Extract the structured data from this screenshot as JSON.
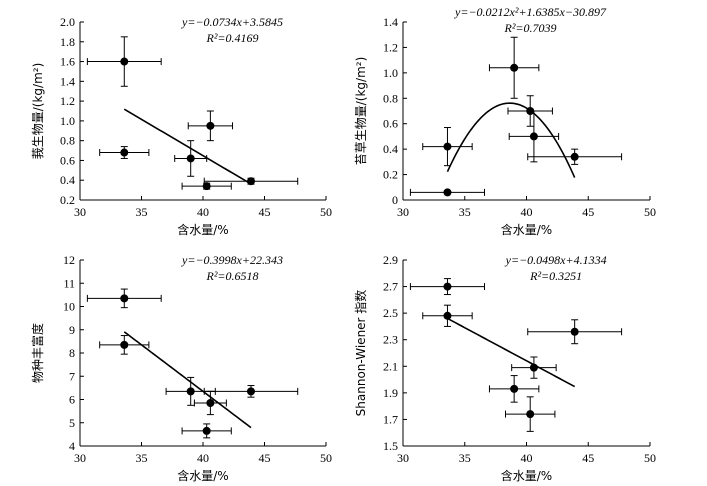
{
  "chart_data": [
    {
      "type": "scatter",
      "xlabel": "含水量/%",
      "ylabel": "莪生物量/(kg/m²)",
      "xlim": [
        30,
        50
      ],
      "ylim": [
        0.2,
        2.0
      ],
      "xticks": [
        "30",
        "35",
        "40",
        "45",
        "50"
      ],
      "yticks": [
        "0.2",
        "0.4",
        "0.6",
        "0.8",
        "1.0",
        "1.2",
        "1.4",
        "1.6",
        "1.8",
        "2.0"
      ],
      "equation": "y=−0.0734x+3.5845",
      "r2": "R²=0.4169",
      "equation_position": "top-right",
      "fit": {
        "kind": "linear",
        "slope": -0.0734,
        "intercept": 3.5845,
        "x_range": [
          33.6,
          43.9
        ]
      },
      "points": [
        {
          "x": 33.6,
          "y": 1.6,
          "xerr": 3.0,
          "yerr": 0.25
        },
        {
          "x": 33.6,
          "y": 0.68,
          "xerr": 2.0,
          "yerr": 0.06
        },
        {
          "x": 39.0,
          "y": 0.62,
          "xerr": 1.3,
          "yerr": 0.18
        },
        {
          "x": 40.6,
          "y": 0.95,
          "xerr": 1.8,
          "yerr": 0.15
        },
        {
          "x": 40.3,
          "y": 0.34,
          "xerr": 2.0,
          "yerr": 0.03
        },
        {
          "x": 43.9,
          "y": 0.39,
          "xerr": 3.8,
          "yerr": 0.03
        }
      ]
    },
    {
      "type": "scatter",
      "xlabel": "含水量/%",
      "ylabel": "苔草生物量/(kg/m²)",
      "xlim": [
        30,
        50
      ],
      "ylim": [
        0,
        1.4
      ],
      "xticks": [
        "30",
        "35",
        "40",
        "45",
        "50"
      ],
      "yticks": [
        "0",
        "0.2",
        "0.4",
        "0.6",
        "0.8",
        "1.0",
        "1.2",
        "1.4"
      ],
      "equation": "y=−0.0212x²+1.6385x−30.897",
      "r2": "R²=0.7039",
      "equation_position": "top",
      "fit": {
        "kind": "quadratic",
        "a": -0.0212,
        "b": 1.6385,
        "c": -30.897,
        "x_range": [
          33.6,
          43.9
        ]
      },
      "points": [
        {
          "x": 33.6,
          "y": 0.06,
          "xerr": 3.0,
          "yerr": 0.0
        },
        {
          "x": 33.6,
          "y": 0.42,
          "xerr": 2.0,
          "yerr": 0.15
        },
        {
          "x": 39.0,
          "y": 1.04,
          "xerr": 2.0,
          "yerr": 0.24
        },
        {
          "x": 40.3,
          "y": 0.7,
          "xerr": 1.8,
          "yerr": 0.12
        },
        {
          "x": 40.6,
          "y": 0.5,
          "xerr": 2.0,
          "yerr": 0.2
        },
        {
          "x": 43.9,
          "y": 0.34,
          "xerr": 3.8,
          "yerr": 0.06
        }
      ]
    },
    {
      "type": "scatter",
      "xlabel": "含水量/%",
      "ylabel": "物种丰富度",
      "xlim": [
        30,
        50
      ],
      "ylim": [
        4,
        12
      ],
      "xticks": [
        "30",
        "35",
        "40",
        "45",
        "50"
      ],
      "yticks": [
        "4",
        "5",
        "6",
        "7",
        "8",
        "9",
        "10",
        "11",
        "12"
      ],
      "equation": "y=−0.3998x+22.343",
      "r2": "R²=0.6518",
      "equation_position": "top-right",
      "fit": {
        "kind": "linear",
        "slope": -0.3998,
        "intercept": 22.343,
        "x_range": [
          33.6,
          43.9
        ]
      },
      "points": [
        {
          "x": 33.6,
          "y": 10.35,
          "xerr": 3.0,
          "yerr": 0.4
        },
        {
          "x": 33.6,
          "y": 8.35,
          "xerr": 2.0,
          "yerr": 0.4
        },
        {
          "x": 39.0,
          "y": 6.35,
          "xerr": 2.0,
          "yerr": 0.6
        },
        {
          "x": 40.6,
          "y": 5.85,
          "xerr": 1.3,
          "yerr": 0.5
        },
        {
          "x": 40.3,
          "y": 4.65,
          "xerr": 2.0,
          "yerr": 0.3
        },
        {
          "x": 43.9,
          "y": 6.35,
          "xerr": 3.8,
          "yerr": 0.25
        }
      ]
    },
    {
      "type": "scatter",
      "xlabel": "含水量/%",
      "ylabel": "Shannon-Wiener 指数",
      "xlim": [
        30,
        50
      ],
      "ylim": [
        1.5,
        2.9
      ],
      "xticks": [
        "30",
        "35",
        "40",
        "45",
        "50"
      ],
      "yticks": [
        "1.5",
        "1.7",
        "1.9",
        "2.1",
        "2.3",
        "2.5",
        "2.7",
        "2.9"
      ],
      "equation": "y=−0.0498x+4.1334",
      "r2": "R²=0.3251",
      "equation_position": "top-right",
      "fit": {
        "kind": "linear",
        "slope": -0.0498,
        "intercept": 4.1334,
        "x_range": [
          33.6,
          43.9
        ]
      },
      "points": [
        {
          "x": 33.6,
          "y": 2.7,
          "xerr": 3.0,
          "yerr": 0.06
        },
        {
          "x": 33.6,
          "y": 2.48,
          "xerr": 2.0,
          "yerr": 0.08
        },
        {
          "x": 39.0,
          "y": 1.93,
          "xerr": 2.0,
          "yerr": 0.1
        },
        {
          "x": 40.6,
          "y": 2.09,
          "xerr": 1.8,
          "yerr": 0.08
        },
        {
          "x": 40.3,
          "y": 1.74,
          "xerr": 2.0,
          "yerr": 0.13
        },
        {
          "x": 43.9,
          "y": 2.36,
          "xerr": 3.8,
          "yerr": 0.09
        }
      ]
    }
  ]
}
